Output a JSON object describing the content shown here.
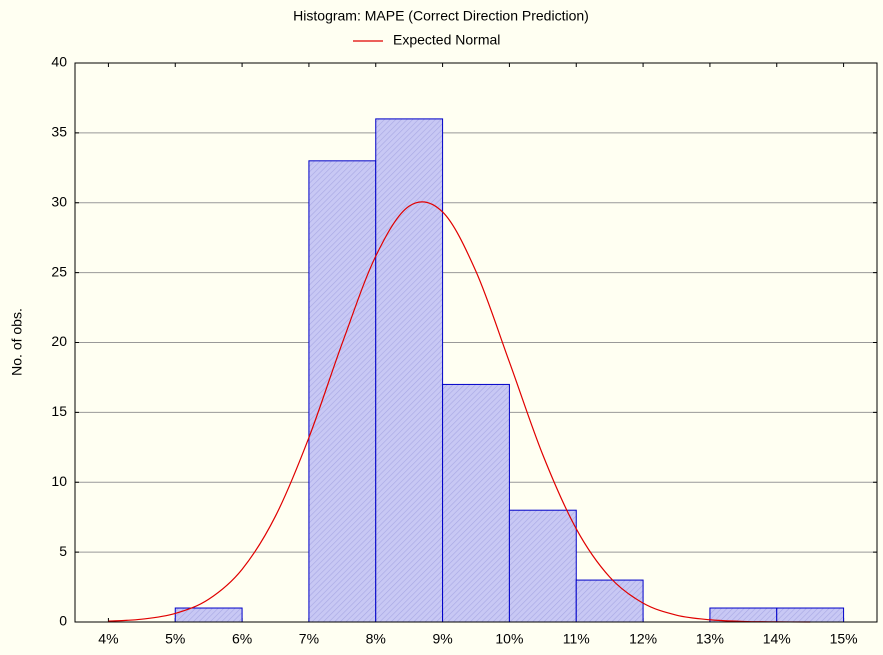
{
  "chart_data": {
    "type": "histogram",
    "title": "Histogram: MAPE (Correct Direction Prediction)",
    "y_label": "No. of obs.",
    "bins": [
      4,
      5,
      6,
      7,
      8,
      9,
      10,
      11,
      12,
      13,
      14,
      15
    ],
    "values": [
      0,
      1,
      0,
      33,
      36,
      17,
      8,
      3,
      0,
      1,
      1
    ],
    "color": "#c8c8f4",
    "edge_color": "#0000c8",
    "curve": {
      "name": "Expected Normal",
      "color": "#e00000",
      "x": [
        4,
        4.5,
        5,
        5.5,
        6,
        6.5,
        7,
        7.5,
        8,
        8.5,
        9,
        9.5,
        10,
        10.5,
        11,
        11.5,
        12,
        12.5,
        13,
        13.5,
        14,
        14.5
      ],
      "values": [
        0.06,
        0.2,
        0.61,
        1.63,
        3.77,
        7.58,
        13.2,
        19.97,
        26.18,
        29.76,
        29.34,
        25.08,
        18.6,
        11.96,
        6.67,
        3.22,
        1.35,
        0.49,
        0.16,
        0.04,
        0.01,
        0
      ]
    },
    "xlim": [
      3.5,
      15.5
    ],
    "xticks": [
      {
        "value": 4,
        "label": "4%"
      },
      {
        "value": 5,
        "label": "5%"
      },
      {
        "value": 6,
        "label": "6%"
      },
      {
        "value": 7,
        "label": "7%"
      },
      {
        "value": 8,
        "label": "8%"
      },
      {
        "value": 9,
        "label": "9%"
      },
      {
        "value": 10,
        "label": "10%"
      },
      {
        "value": 11,
        "label": "11%"
      },
      {
        "value": 12,
        "label": "12%"
      },
      {
        "value": 13,
        "label": "13%"
      },
      {
        "value": 14,
        "label": "14%"
      },
      {
        "value": 15,
        "label": "15%"
      }
    ],
    "ylim": [
      0,
      40
    ],
    "yticks": [
      0,
      5,
      10,
      15,
      20,
      25,
      30,
      35,
      40
    ],
    "grid": true
  }
}
